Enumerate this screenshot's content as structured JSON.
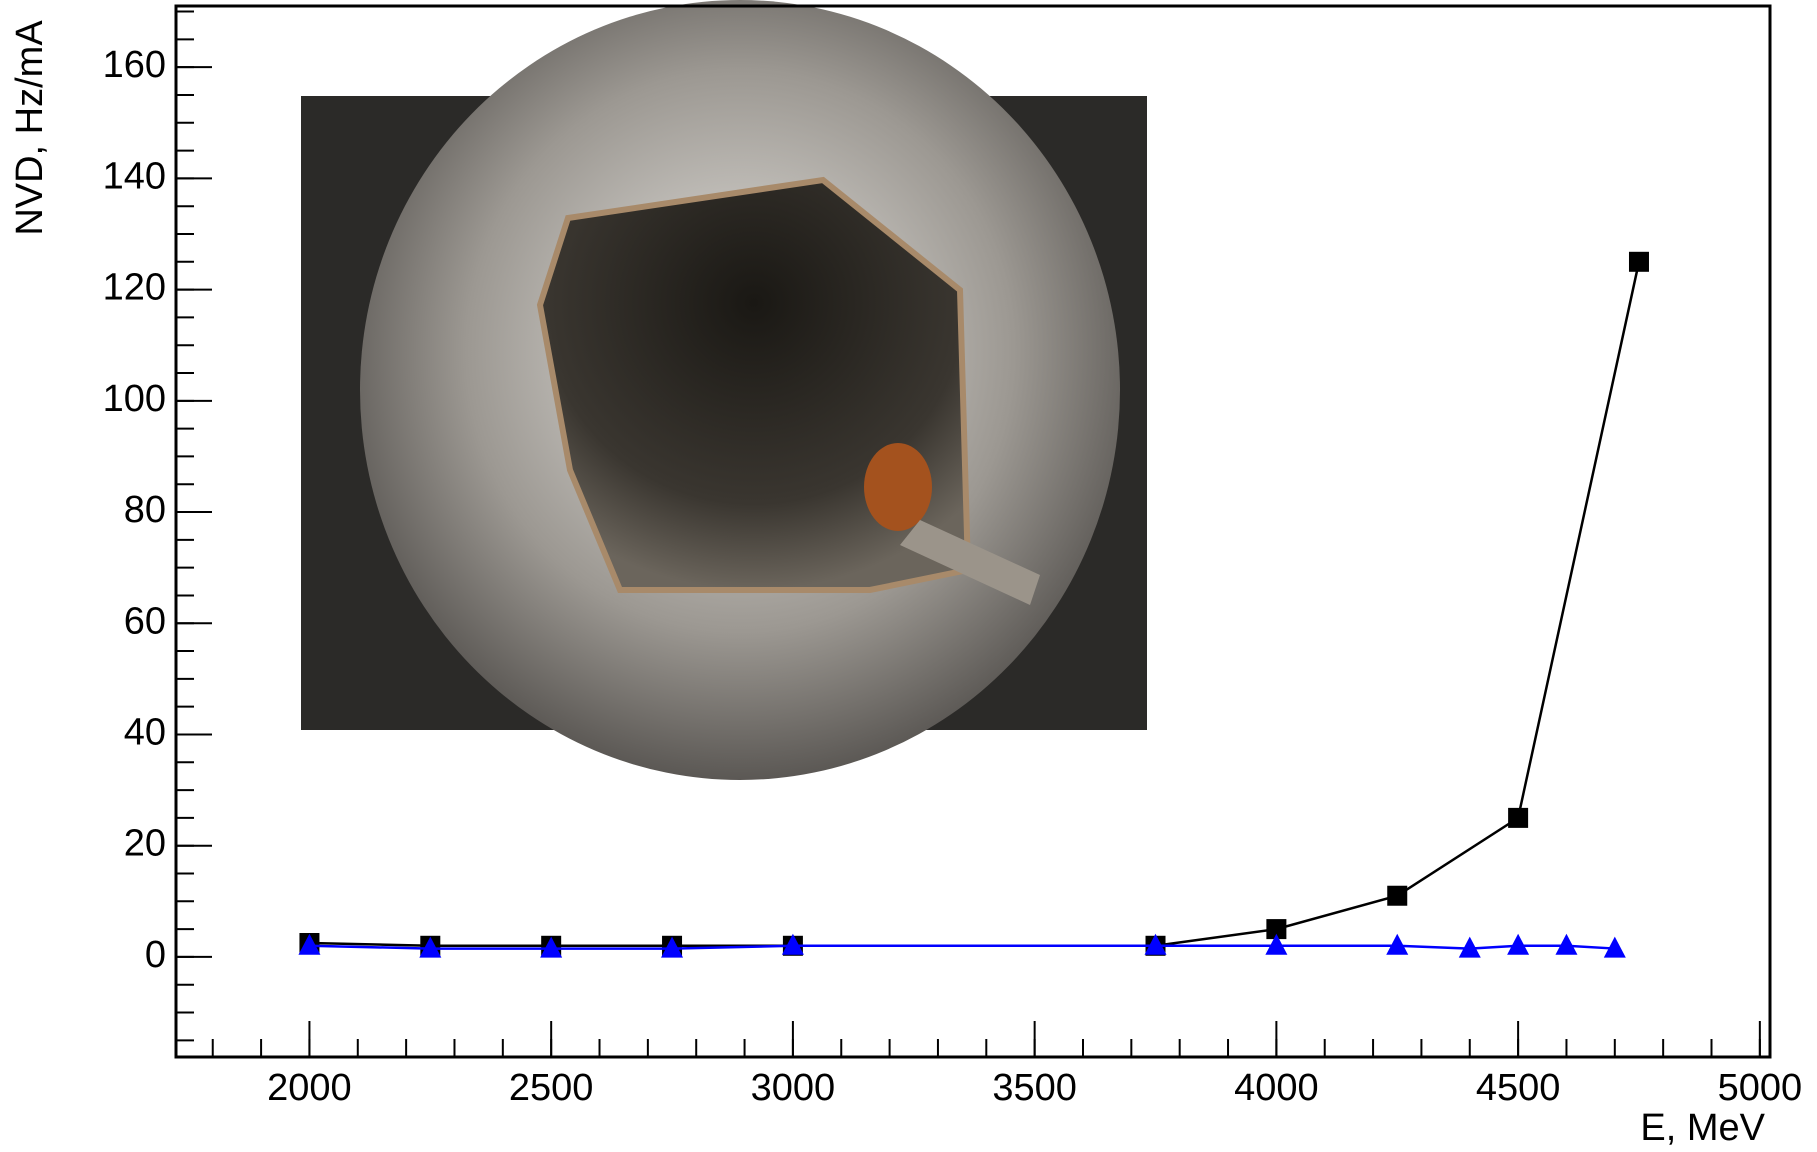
{
  "chart_data": {
    "type": "line",
    "xlabel": "E, MeV",
    "ylabel": "NVD, Hz/mA",
    "xlim": [
      1724,
      5021
    ],
    "xticks": [
      2000,
      2500,
      3000,
      3500,
      4000,
      4500,
      5000
    ],
    "ylim": [
      -18,
      171
    ],
    "yticks": [
      0,
      20,
      40,
      60,
      80,
      100,
      120,
      140,
      160
    ],
    "series": [
      {
        "color": "#000000",
        "marker": "square",
        "x": [
          2000,
          2250,
          2500,
          2750,
          3000,
          3750,
          4000,
          4250,
          4500,
          4750
        ],
        "values": [
          2.5,
          2,
          2,
          2,
          2,
          2,
          5,
          11,
          25,
          125
        ]
      },
      {
        "color": "#0000ff",
        "marker": "triangle",
        "x": [
          2000,
          2250,
          2500,
          2750,
          3000,
          3750,
          4000,
          4250,
          4400,
          4500,
          4600,
          4700
        ],
        "values": [
          2,
          1.5,
          1.5,
          1.5,
          2,
          2,
          2,
          2,
          1.5,
          2,
          2,
          1.5
        ]
      }
    ]
  }
}
